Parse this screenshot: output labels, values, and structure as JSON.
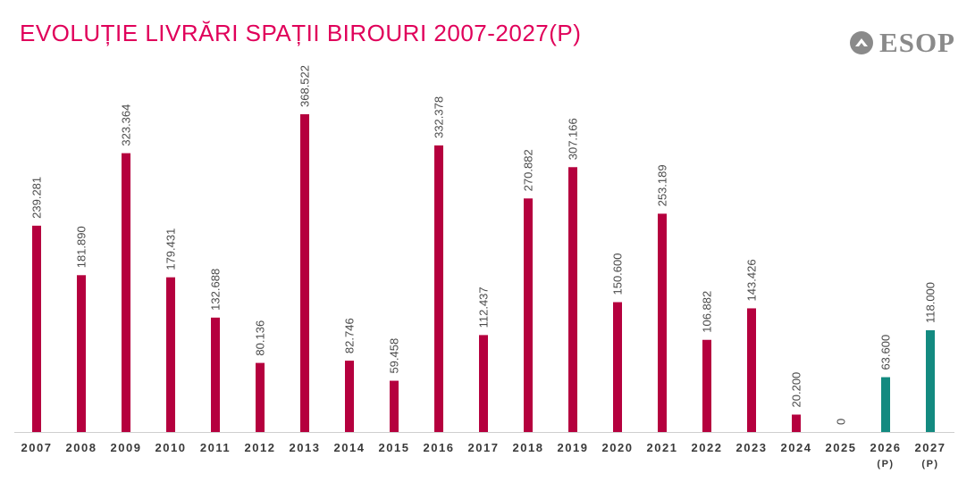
{
  "title": "EVOLUȚIE LIVRĂRI SPAȚII BIROURI 2007-2027(P)",
  "logo": {
    "text": "ESOP",
    "icon": "triangle-circle-icon"
  },
  "colors": {
    "title": "#e0005a",
    "actual": "#b5003e",
    "projected": "#138a80",
    "axis": "#cfcfcf",
    "logo": "#8a8a8a"
  },
  "chart_data": {
    "type": "bar",
    "categories": [
      "2007",
      "2008",
      "2009",
      "2010",
      "2011",
      "2012",
      "2013",
      "2014",
      "2015",
      "2016",
      "2017",
      "2018",
      "2019",
      "2020",
      "2021",
      "2022",
      "2023",
      "2024",
      "2025",
      "2026",
      "2027"
    ],
    "category_suffix": [
      "",
      "",
      "",
      "",
      "",
      "",
      "",
      "",
      "",
      "",
      "",
      "",
      "",
      "",
      "",
      "",
      "",
      "",
      "",
      "(P)",
      "(P)"
    ],
    "values": [
      239281,
      181890,
      323364,
      179431,
      132688,
      80136,
      368522,
      82746,
      59458,
      332378,
      112437,
      270882,
      307166,
      150600,
      253189,
      106882,
      143426,
      20200,
      0,
      63600,
      118000
    ],
    "value_labels": [
      "239.281",
      "181.890",
      "323.364",
      "179.431",
      "132.688",
      "80.136",
      "368.522",
      "82.746",
      "59.458",
      "332.378",
      "112.437",
      "270.882",
      "307.166",
      "150.600",
      "253.189",
      "106.882",
      "143.426",
      "20.200",
      "0",
      "63.600",
      "118.000"
    ],
    "projected": [
      false,
      false,
      false,
      false,
      false,
      false,
      false,
      false,
      false,
      false,
      false,
      false,
      false,
      false,
      false,
      false,
      false,
      false,
      false,
      true,
      true
    ],
    "ylim": [
      0,
      368522
    ],
    "xlabel": "",
    "ylabel": "",
    "grid": false,
    "legend": "none"
  }
}
